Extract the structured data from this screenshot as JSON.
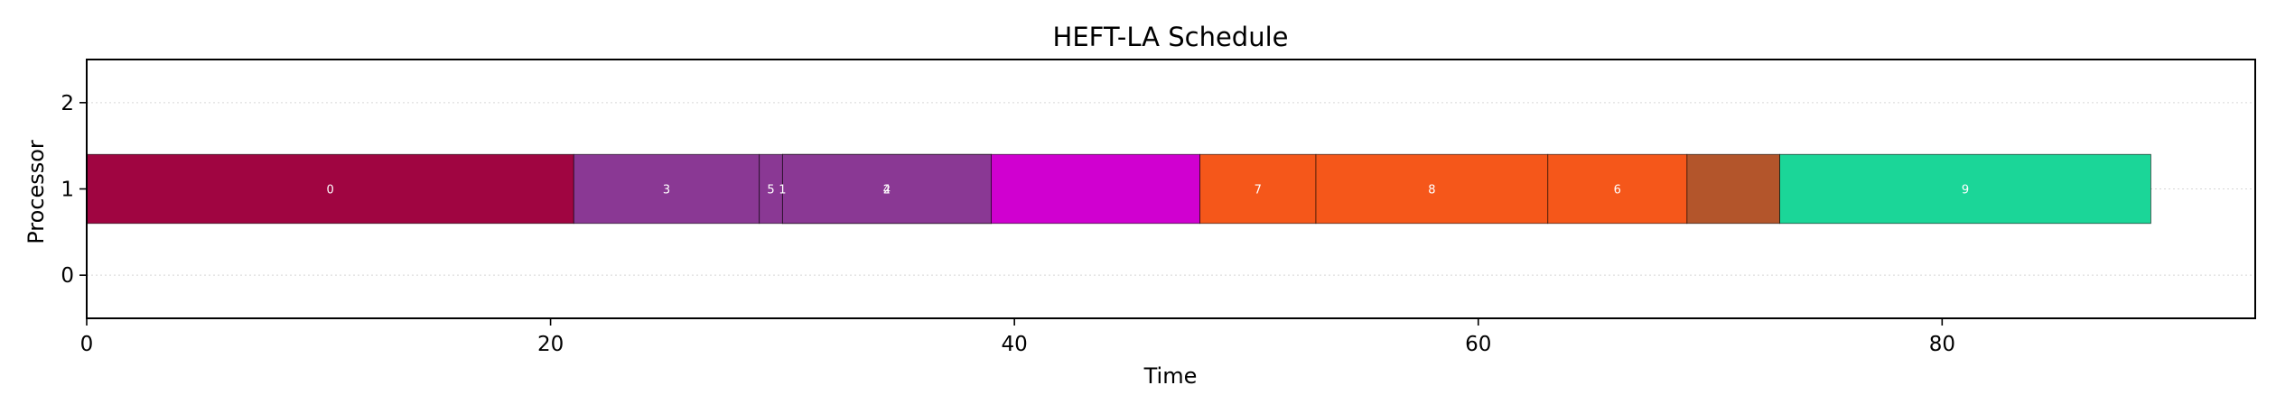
{
  "chart_data": {
    "type": "gantt",
    "title": "HEFT-LA Schedule",
    "xlabel": "Time",
    "ylabel": "Processor",
    "xlim": [
      0,
      93.5
    ],
    "ylim": [
      -0.5,
      2.5
    ],
    "xticks": [
      0,
      20,
      40,
      60,
      80
    ],
    "yticks": [
      0,
      1,
      2
    ],
    "grid": true,
    "bar_height": 0.8,
    "tasks": [
      {
        "label": "0",
        "processor": 1,
        "start": 0,
        "end": 21,
        "color": "#a00541"
      },
      {
        "label": "3",
        "processor": 1,
        "start": 21,
        "end": 29,
        "color": "#8a3894"
      },
      {
        "label": "5",
        "processor": 1,
        "start": 29,
        "end": 30,
        "color": "#8a3894"
      },
      {
        "label": "1",
        "processor": 1,
        "start": 30,
        "end": 30,
        "color": "#8a3894"
      },
      {
        "label": "2",
        "processor": 1,
        "start": 30,
        "end": 39,
        "color": "#8a3894"
      },
      {
        "label": "4",
        "processor": 1,
        "start": 30,
        "end": 39,
        "color": "#8a3894"
      },
      {
        "label": "",
        "processor": 1,
        "start": 39,
        "end": 48,
        "color": "#d000d0"
      },
      {
        "label": "7",
        "processor": 1,
        "start": 48,
        "end": 53,
        "color": "#f5571a"
      },
      {
        "label": "8",
        "processor": 1,
        "start": 53,
        "end": 63,
        "color": "#f5571a"
      },
      {
        "label": "6",
        "processor": 1,
        "start": 63,
        "end": 69,
        "color": "#f5571a"
      },
      {
        "label": "",
        "processor": 1,
        "start": 69,
        "end": 73,
        "color": "#b3552b"
      },
      {
        "label": "9",
        "processor": 1,
        "start": 73,
        "end": 89,
        "color": "#1bd698"
      }
    ]
  }
}
